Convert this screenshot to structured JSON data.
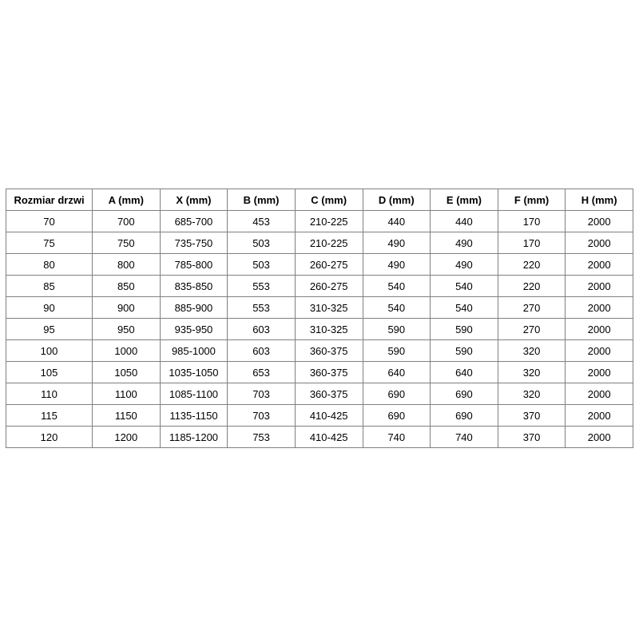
{
  "page": {
    "background": "#ffffff"
  },
  "table": {
    "name": "door-size-specification-table",
    "border_color": "#808080",
    "text_color": "#000000",
    "header_bg": "#ffffff",
    "headers": [
      "Rozmiar drzwi",
      "A (mm)",
      "X (mm)",
      "B (mm)",
      "C (mm)",
      "D (mm)",
      "E (mm)",
      "F (mm)",
      "H (mm)"
    ],
    "rows": [
      [
        "70",
        "700",
        "685-700",
        "453",
        "210-225",
        "440",
        "440",
        "170",
        "2000"
      ],
      [
        "75",
        "750",
        "735-750",
        "503",
        "210-225",
        "490",
        "490",
        "170",
        "2000"
      ],
      [
        "80",
        "800",
        "785-800",
        "503",
        "260-275",
        "490",
        "490",
        "220",
        "2000"
      ],
      [
        "85",
        "850",
        "835-850",
        "553",
        "260-275",
        "540",
        "540",
        "220",
        "2000"
      ],
      [
        "90",
        "900",
        "885-900",
        "553",
        "310-325",
        "540",
        "540",
        "270",
        "2000"
      ],
      [
        "95",
        "950",
        "935-950",
        "603",
        "310-325",
        "590",
        "590",
        "270",
        "2000"
      ],
      [
        "100",
        "1000",
        "985-1000",
        "603",
        "360-375",
        "590",
        "590",
        "320",
        "2000"
      ],
      [
        "105",
        "1050",
        "1035-1050",
        "653",
        "360-375",
        "640",
        "640",
        "320",
        "2000"
      ],
      [
        "110",
        "1100",
        "1085-1100",
        "703",
        "360-375",
        "690",
        "690",
        "320",
        "2000"
      ],
      [
        "115",
        "1150",
        "1135-1150",
        "703",
        "410-425",
        "690",
        "690",
        "370",
        "2000"
      ],
      [
        "120",
        "1200",
        "1185-1200",
        "753",
        "410-425",
        "740",
        "740",
        "370",
        "2000"
      ]
    ]
  }
}
